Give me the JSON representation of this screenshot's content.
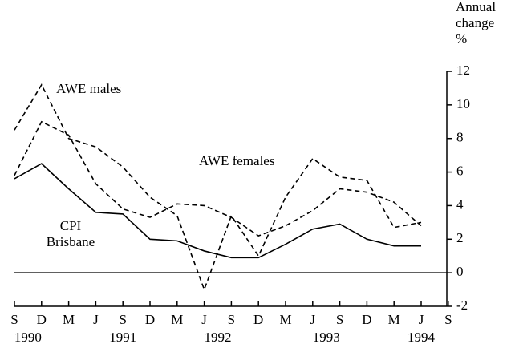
{
  "chart_data": {
    "type": "line",
    "axis_label": [
      "Annual",
      "change",
      "%"
    ],
    "categories": [
      "S",
      "D",
      "M",
      "J",
      "S",
      "D",
      "M",
      "J",
      "S",
      "D",
      "M",
      "J",
      "S",
      "D",
      "M",
      "J",
      "S"
    ],
    "year_labels": [
      "1990",
      "1991",
      "1992",
      "1993",
      "1994"
    ],
    "ylim": [
      -2,
      12
    ],
    "yticks": [
      -2,
      0,
      2,
      4,
      6,
      8,
      10,
      12
    ],
    "series": [
      {
        "name": "AWE males",
        "color": "#000000",
        "dash": true,
        "values": [
          8.5,
          11.2,
          8.0,
          7.5,
          6.3,
          4.5,
          3.4,
          -1.0,
          3.4,
          1.0,
          4.5,
          6.8,
          5.7,
          5.5,
          2.7,
          3.0,
          null
        ]
      },
      {
        "name": "AWE females",
        "color": "#000000",
        "dash": true,
        "values": [
          5.8,
          9.0,
          8.2,
          5.3,
          3.8,
          3.3,
          4.1,
          4.0,
          3.3,
          2.2,
          2.8,
          3.7,
          5.0,
          4.8,
          4.2,
          2.8,
          null
        ]
      },
      {
        "name": "CPI Brisbane",
        "color": "#000000",
        "dash": false,
        "values": [
          5.6,
          6.5,
          5.0,
          3.6,
          3.5,
          2.0,
          1.9,
          1.3,
          0.9,
          0.9,
          1.7,
          2.6,
          2.9,
          2.0,
          1.6,
          1.6,
          null
        ]
      }
    ]
  }
}
